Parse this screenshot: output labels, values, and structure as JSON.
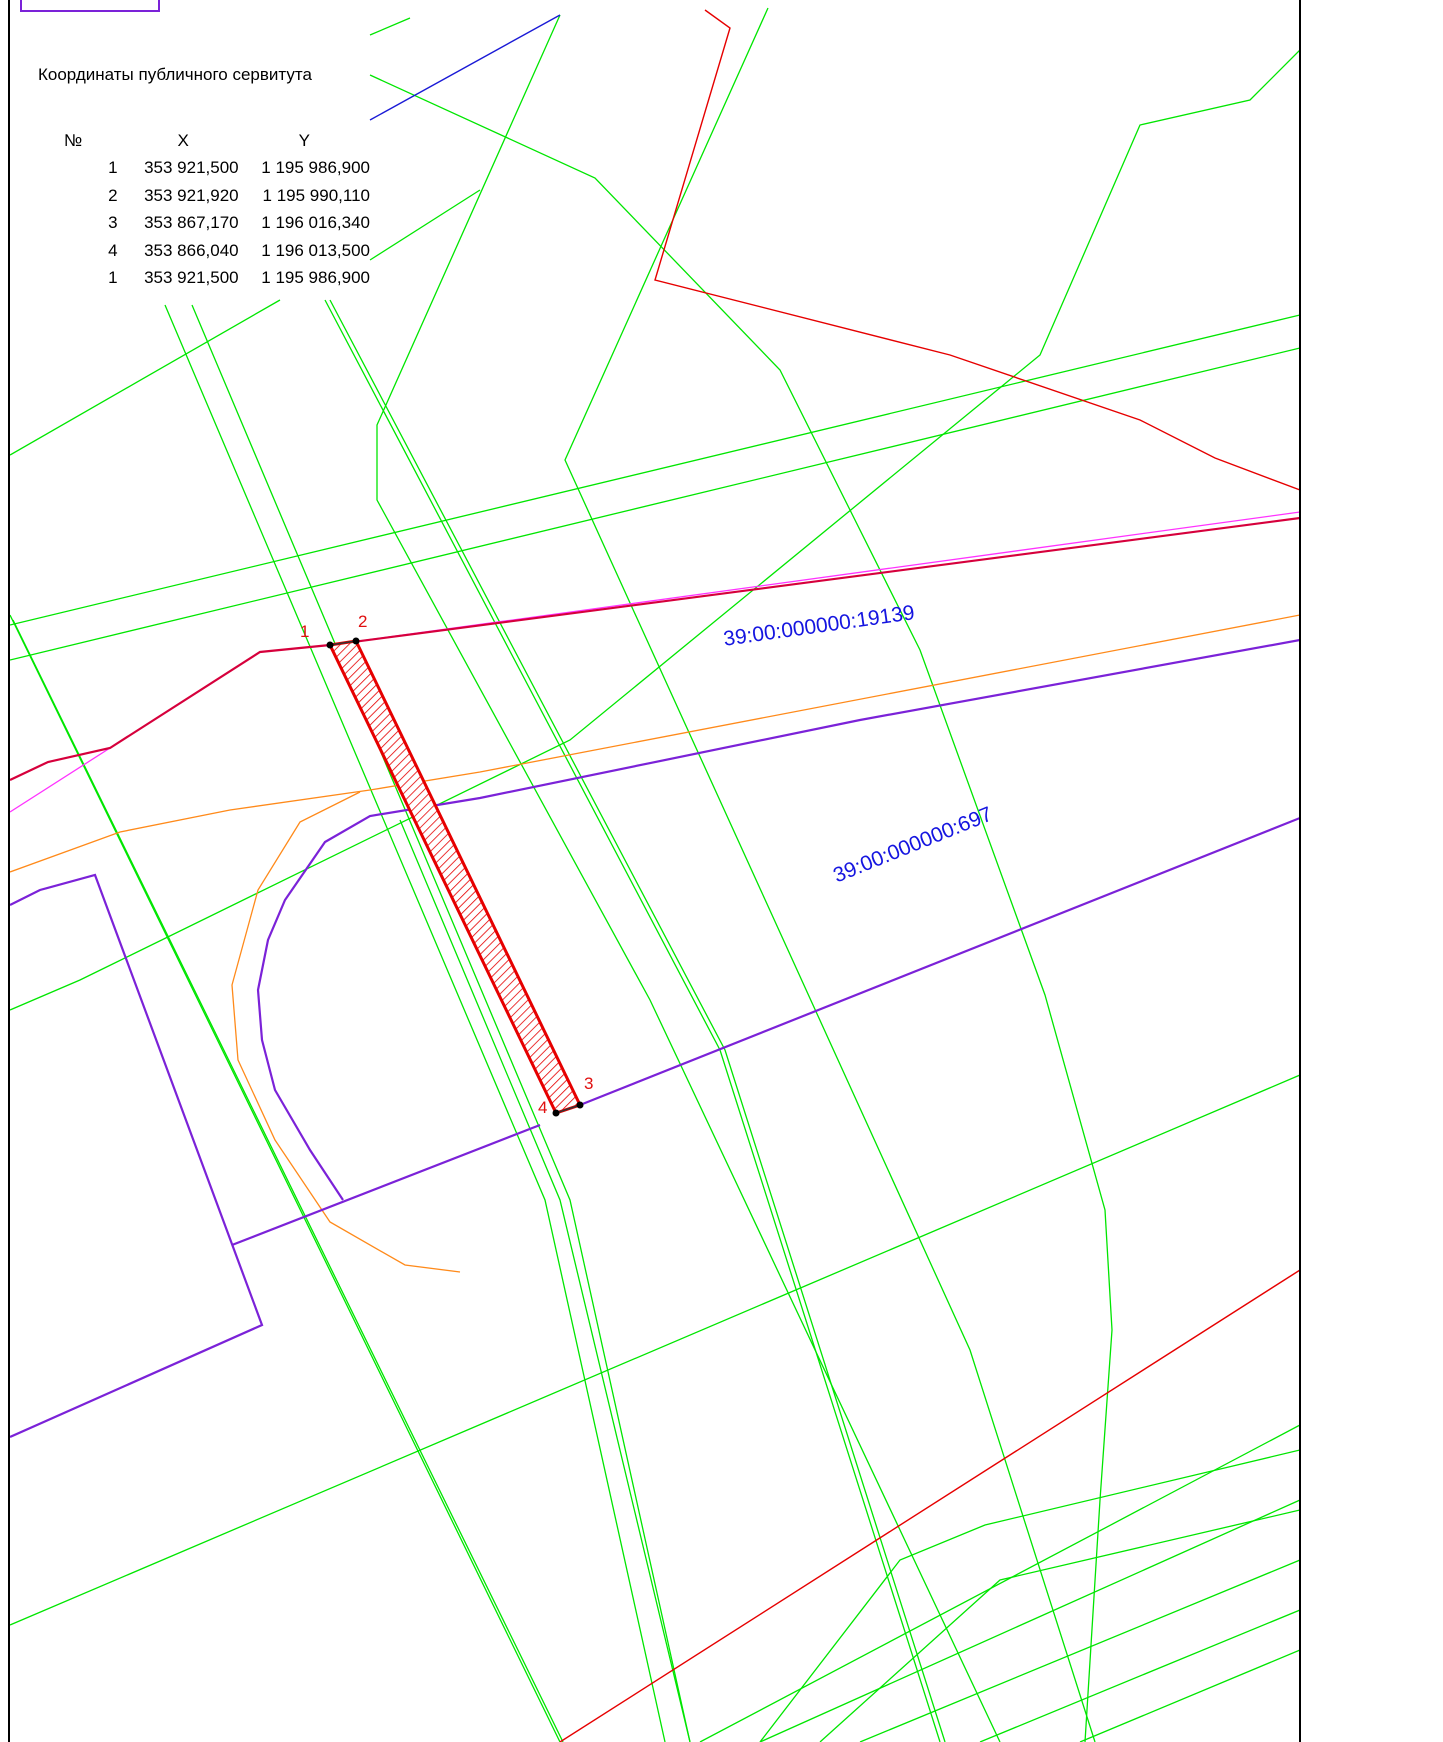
{
  "servitude_table": {
    "title": "Координаты публичного сервитута",
    "headers": {
      "no": "№",
      "x": "X",
      "y": "Y"
    },
    "rows": [
      {
        "no": "1",
        "x": "353 921,500",
        "y": "1 195 986,900"
      },
      {
        "no": "2",
        "x": "353 921,920",
        "y": "1 195 990,110"
      },
      {
        "no": "3",
        "x": "353 867,170",
        "y": "1 196 016,340"
      },
      {
        "no": "4",
        "x": "353 866,040",
        "y": "1 196 013,500"
      },
      {
        "no": "1",
        "x": "353 921,500",
        "y": "1 195 986,900"
      }
    ]
  },
  "parcels": [
    {
      "cadastral_number": "39:00:000000:19139"
    },
    {
      "cadastral_number": "39:00:000000:697"
    }
  ],
  "servitude_points": [
    "1",
    "2",
    "3",
    "4"
  ],
  "colors": {
    "utility_line": "#00e600",
    "parcel_boundary": "#7b22d8",
    "servitude": "#e60000",
    "road_edge": "#ff8a1a",
    "parcel_label": "#1515e0",
    "magenta_line": "#ff33ff",
    "blue_line": "#1a1ad6"
  }
}
